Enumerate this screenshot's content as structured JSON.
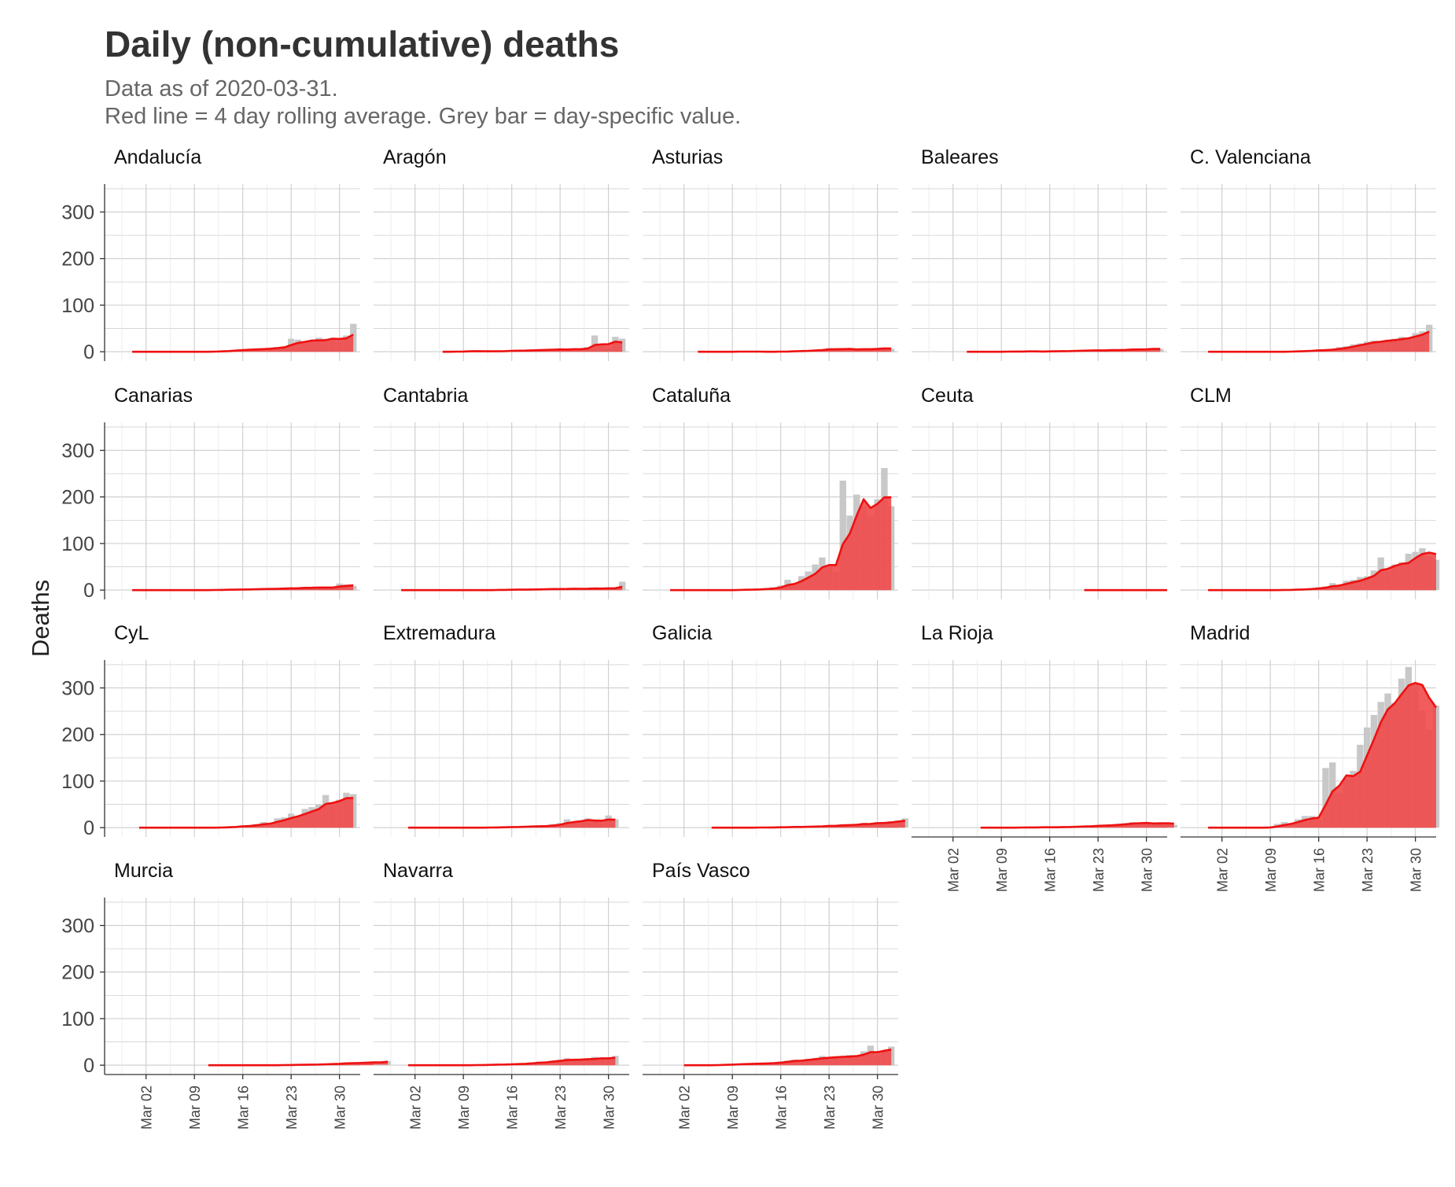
{
  "title": "Daily (non-cumulative) deaths",
  "subtitle_lines": [
    "Data as of 2020-03-31.",
    "Red line = 4 day rolling average. Grey bar = day-specific value."
  ],
  "colors": {
    "bar": "#c8c8c8",
    "area": "#f04545",
    "line": "#ee1111",
    "grid": "#d0d0d0",
    "axis": "#333333",
    "title": "#333333",
    "subtitle": "#666666"
  },
  "chart_data": {
    "type": "bar",
    "ylabel": "Deaths",
    "xlabel": "",
    "ylim": [
      -20,
      360
    ],
    "y_ticks": [
      0,
      100,
      200,
      300
    ],
    "x_ticks": [
      "Mar 02",
      "Mar 09",
      "Mar 16",
      "Mar 23",
      "Mar 30"
    ],
    "x_ticks_iso": [
      "2020-03-02",
      "2020-03-09",
      "2020-03-16",
      "2020-03-23",
      "2020-03-30"
    ],
    "xlim": [
      "2020-02-25",
      "2020-04-02"
    ],
    "rolling_window": 4,
    "grid": true,
    "series": [
      {
        "name": "Andalucía",
        "start_date": "2020-02-29",
        "values": [
          0,
          0,
          0,
          0,
          0,
          0,
          0,
          0,
          0,
          0,
          0,
          0,
          1,
          2,
          3,
          4,
          5,
          5,
          6,
          7,
          8,
          10,
          12,
          28,
          26,
          18,
          24,
          30,
          28,
          30,
          22,
          35,
          60
        ]
      },
      {
        "name": "Aragón",
        "start_date": "2020-03-06",
        "values": [
          0,
          0,
          1,
          1,
          2,
          1,
          0,
          1,
          2,
          2,
          3,
          2,
          3,
          4,
          5,
          4,
          5,
          6,
          4,
          7,
          6,
          10,
          35,
          12,
          8,
          32,
          28
        ]
      },
      {
        "name": "Asturias",
        "start_date": "2020-03-04",
        "values": [
          0,
          0,
          0,
          0,
          0,
          0,
          1,
          0,
          0,
          0,
          0,
          0,
          1,
          1,
          2,
          2,
          3,
          4,
          5,
          8,
          5,
          5,
          6,
          4,
          7,
          5,
          8,
          9,
          6
        ]
      },
      {
        "name": "Baleares",
        "start_date": "2020-03-04",
        "values": [
          0,
          0,
          0,
          0,
          0,
          0,
          1,
          1,
          0,
          1,
          1,
          0,
          1,
          2,
          2,
          1,
          3,
          3,
          4,
          2,
          3,
          5,
          4,
          4,
          6,
          6,
          5,
          7,
          6
        ]
      },
      {
        "name": "C. Valenciana",
        "start_date": "2020-02-29",
        "values": [
          0,
          0,
          0,
          0,
          0,
          0,
          0,
          0,
          0,
          0,
          0,
          0,
          1,
          2,
          2,
          3,
          5,
          4,
          6,
          10,
          12,
          16,
          18,
          22,
          24,
          22,
          26,
          28,
          32,
          30,
          40,
          44,
          58
        ]
      },
      {
        "name": "Canarias",
        "start_date": "2020-02-29",
        "values": [
          0,
          0,
          0,
          0,
          0,
          0,
          0,
          0,
          0,
          0,
          0,
          0,
          1,
          1,
          1,
          1,
          2,
          2,
          2,
          3,
          3,
          3,
          4,
          5,
          4,
          6,
          5,
          7,
          4,
          6,
          14,
          12,
          9
        ]
      },
      {
        "name": "Cantabria",
        "start_date": "2020-02-29",
        "values": [
          0,
          0,
          0,
          0,
          0,
          0,
          0,
          0,
          0,
          0,
          0,
          0,
          0,
          0,
          1,
          1,
          1,
          1,
          1,
          2,
          2,
          2,
          3,
          2,
          3,
          4,
          2,
          3,
          5,
          3,
          4,
          4,
          18
        ]
      },
      {
        "name": "Cataluña",
        "start_date": "2020-02-29",
        "values": [
          0,
          0,
          0,
          0,
          0,
          0,
          0,
          0,
          0,
          0,
          1,
          2,
          1,
          2,
          4,
          6,
          10,
          22,
          15,
          30,
          40,
          55,
          70,
          50,
          40,
          235,
          160,
          205,
          180,
          160,
          195,
          262,
          180
        ]
      },
      {
        "name": "Ceuta",
        "start_date": "2020-03-21",
        "values": [
          0,
          0,
          0,
          0,
          0,
          0,
          0,
          0,
          0,
          0,
          0,
          0,
          0
        ]
      },
      {
        "name": "CLM",
        "start_date": "2020-02-29",
        "values": [
          0,
          0,
          0,
          0,
          0,
          0,
          0,
          0,
          0,
          0,
          0,
          1,
          1,
          2,
          2,
          4,
          6,
          8,
          15,
          10,
          20,
          22,
          28,
          30,
          42,
          70,
          40,
          55,
          60,
          78,
          82,
          90,
          72,
          65
        ]
      },
      {
        "name": "CyL",
        "start_date": "2020-03-01",
        "values": [
          0,
          0,
          0,
          0,
          0,
          0,
          0,
          0,
          0,
          0,
          0,
          0,
          1,
          2,
          3,
          5,
          4,
          8,
          12,
          10,
          20,
          22,
          30,
          25,
          40,
          44,
          50,
          70,
          48,
          60,
          75,
          72
        ]
      },
      {
        "name": "Extremadura",
        "start_date": "2020-03-01",
        "values": [
          0,
          0,
          0,
          0,
          0,
          0,
          0,
          0,
          0,
          0,
          0,
          0,
          1,
          1,
          1,
          2,
          2,
          3,
          3,
          4,
          3,
          8,
          10,
          18,
          12,
          15,
          20,
          14,
          10,
          26,
          18
        ]
      },
      {
        "name": "Galicia",
        "start_date": "2020-03-06",
        "values": [
          0,
          0,
          0,
          0,
          0,
          0,
          0,
          1,
          0,
          1,
          1,
          2,
          2,
          1,
          3,
          3,
          4,
          5,
          4,
          7,
          6,
          8,
          10,
          8,
          12,
          10,
          14,
          16,
          20
        ]
      },
      {
        "name": "La Rioja",
        "start_date": "2020-03-06",
        "values": [
          0,
          0,
          0,
          0,
          0,
          0,
          1,
          1,
          0,
          1,
          1,
          1,
          2,
          2,
          3,
          3,
          4,
          5,
          6,
          5,
          8,
          10,
          12,
          8,
          10,
          6,
          12,
          10,
          6
        ]
      },
      {
        "name": "Madrid",
        "start_date": "2020-02-29",
        "values": [
          0,
          0,
          0,
          0,
          0,
          0,
          0,
          0,
          0,
          2,
          8,
          12,
          10,
          18,
          25,
          25,
          18,
          128,
          140,
          75,
          105,
          122,
          178,
          215,
          242,
          270,
          288,
          268,
          320,
          345,
          310,
          250,
          210,
          262
        ]
      },
      {
        "name": "Murcia",
        "start_date": "2020-03-11",
        "values": [
          0,
          0,
          0,
          0,
          0,
          0,
          0,
          0,
          0,
          0,
          0,
          1,
          1,
          1,
          1,
          2,
          2,
          3,
          3,
          4,
          6,
          5,
          4,
          7,
          8,
          6,
          9
        ]
      },
      {
        "name": "Navarra",
        "start_date": "2020-03-01",
        "values": [
          0,
          0,
          0,
          0,
          0,
          0,
          0,
          0,
          0,
          0,
          1,
          1,
          1,
          2,
          2,
          3,
          3,
          4,
          6,
          8,
          7,
          10,
          12,
          15,
          9,
          12,
          15,
          18,
          14,
          12,
          20
        ]
      },
      {
        "name": "País Vasco",
        "start_date": "2020-03-02",
        "values": [
          0,
          0,
          0,
          0,
          0,
          1,
          2,
          2,
          3,
          3,
          4,
          3,
          5,
          6,
          8,
          10,
          12,
          9,
          14,
          16,
          20,
          14,
          18,
          20,
          22,
          18,
          30,
          42,
          22,
          30,
          40
        ]
      }
    ]
  }
}
